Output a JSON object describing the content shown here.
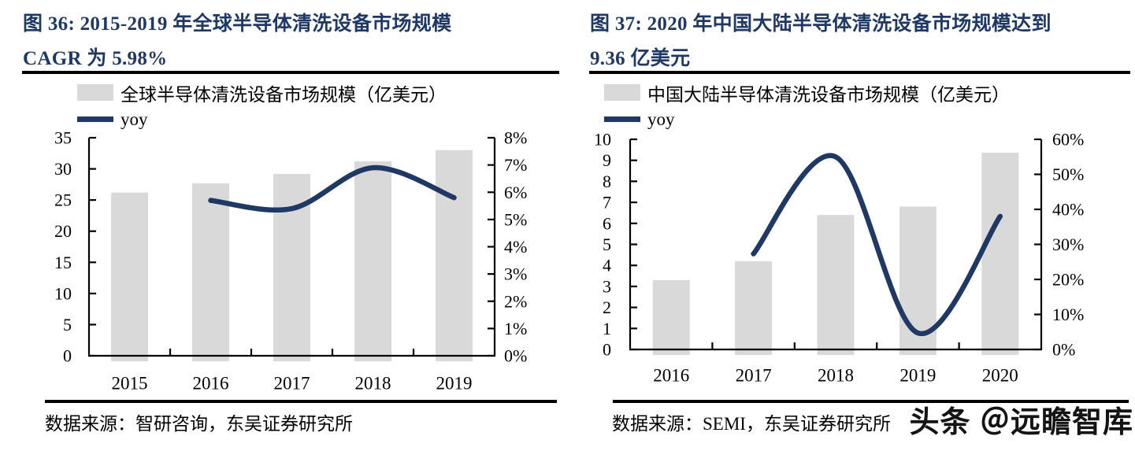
{
  "colors": {
    "navy": "#1f3864",
    "bar_gray": "#d9d9d9",
    "axis": "#000000",
    "background": "#ffffff"
  },
  "watermark": {
    "text": "头条 ＠远瞻智库"
  },
  "figures": [
    {
      "title_line1": "图 36:  2015-2019 年全球半导体清洗设备市场规模",
      "title_line2": "CAGR 为 5.98%",
      "source": "数据来源：智研咨询，东吴证券研究所",
      "legend": [
        {
          "swatch": "bar",
          "label": "全球半导体清洗设备市场规模（亿美元）"
        },
        {
          "swatch": "line",
          "label": "yoy"
        }
      ],
      "chart_data": {
        "type": "bar+line",
        "categories": [
          "2015",
          "2016",
          "2017",
          "2018",
          "2019"
        ],
        "series": [
          {
            "name": "全球半导体清洗设备市场规模（亿美元）",
            "type": "bar",
            "axis": "left",
            "unit": "亿美元",
            "values": [
              26.2,
              27.7,
              29.2,
              31.2,
              33.0
            ]
          },
          {
            "name": "yoy",
            "type": "line",
            "axis": "right",
            "unit": "%",
            "values": [
              null,
              5.7,
              5.4,
              6.9,
              5.8
            ]
          }
        ],
        "left_axis": {
          "min": 0,
          "max": 35,
          "step": 5,
          "ticks": [
            "0",
            "5",
            "10",
            "15",
            "20",
            "25",
            "30",
            "35"
          ]
        },
        "right_axis": {
          "min": 0,
          "max": 8,
          "step": 1,
          "ticks": [
            "0%",
            "1%",
            "2%",
            "3%",
            "4%",
            "5%",
            "6%",
            "7%",
            "8%"
          ]
        },
        "grid": false,
        "legend_position": "top-left"
      }
    },
    {
      "title_line1": "图 37:  2020 年中国大陆半导体清洗设备市场规模达到",
      "title_line2": "9.36 亿美元",
      "source": "数据来源：SEMI，东吴证券研究所",
      "legend": [
        {
          "swatch": "bar",
          "label": "中国大陆半导体清洗设备市场规模（亿美元）"
        },
        {
          "swatch": "line",
          "label": "yoy"
        }
      ],
      "chart_data": {
        "type": "bar+line",
        "categories": [
          "2016",
          "2017",
          "2018",
          "2019",
          "2020"
        ],
        "series": [
          {
            "name": "中国大陆半导体清洗设备市场规模（亿美元）",
            "type": "bar",
            "axis": "left",
            "unit": "亿美元",
            "values": [
              3.3,
              4.2,
              6.4,
              6.8,
              9.36
            ]
          },
          {
            "name": "yoy",
            "type": "line",
            "axis": "right",
            "unit": "%",
            "values": [
              null,
              27.3,
              55.0,
              4.7,
              38.0
            ]
          }
        ],
        "left_axis": {
          "min": 0,
          "max": 10,
          "step": 1,
          "ticks": [
            "0",
            "1",
            "2",
            "3",
            "4",
            "5",
            "6",
            "7",
            "8",
            "9",
            "10"
          ]
        },
        "right_axis": {
          "min": 0,
          "max": 60,
          "step": 10,
          "ticks": [
            "0%",
            "10%",
            "20%",
            "30%",
            "40%",
            "50%",
            "60%"
          ]
        },
        "grid": false,
        "legend_position": "top-left"
      }
    }
  ]
}
